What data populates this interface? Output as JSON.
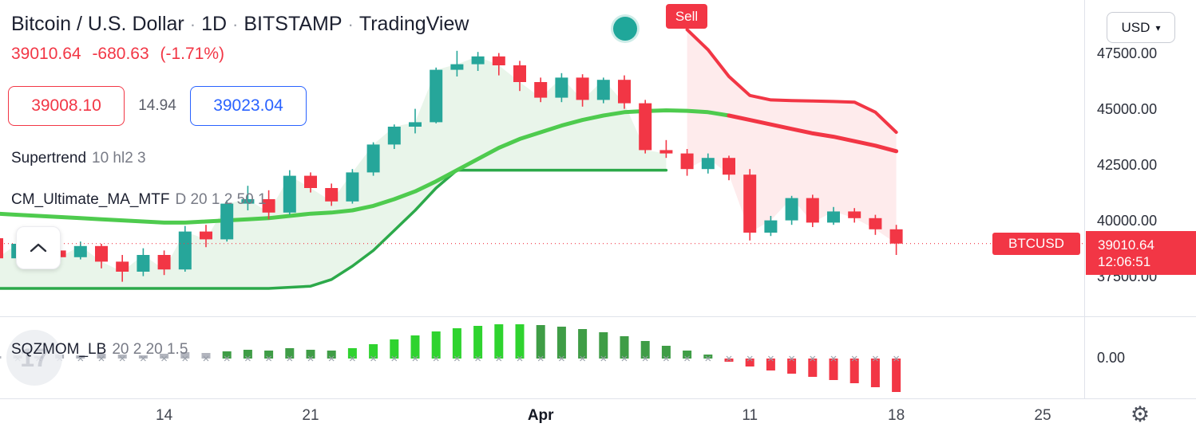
{
  "header": {
    "symbol": "Bitcoin / U.S. Dollar",
    "sep": "·",
    "timeframe": "1D",
    "exchange": "BITSTAMP",
    "brand": "TradingView"
  },
  "quote": {
    "last": "39010.64",
    "change": "-680.63",
    "change_pct": "(-1.71%)",
    "bid": "39008.10",
    "spread": "14.94",
    "ask": "39023.04"
  },
  "indicators": {
    "supertrend": {
      "name": "Supertrend",
      "params": "10 hl2 3"
    },
    "ma": {
      "name": "CM_Ultimate_MA_MTF",
      "params": "D 20 1 2 50 1"
    },
    "sqzmom": {
      "name": "SQZMOM_LB",
      "params": "20 2 20 1.5"
    }
  },
  "badges": {
    "sell": "Sell",
    "symbol_label": "BTCUSD",
    "price_label": "39010.64",
    "countdown": "12:06:51",
    "currency": "USD",
    "watermark": "17"
  },
  "colors": {
    "up": "#26a69a",
    "down": "#f23645",
    "st_green": "#2ca94a",
    "st_red": "#f23645",
    "ma_green": "#4ecb4e",
    "ma_red": "#f23645",
    "fill_up": "rgba(76,175,80,0.12)",
    "fill_down": "rgba(242,54,69,0.10)",
    "price_line": "#f23645",
    "marker": "#9aa0aa",
    "momentum": {
      "gray": "#b2b5be",
      "green": "#3f9d46",
      "lime": "#2fd32f",
      "red": "#f23645"
    }
  },
  "chart_data": {
    "type": "candlestick",
    "title": "Bitcoin / U.S. Dollar 1D BITSTAMP",
    "ylim": [
      36000,
      49900
    ],
    "grid": false,
    "price_line": 39010.64,
    "candles": [
      [
        39250,
        39350,
        38000,
        38350
      ],
      [
        38350,
        39300,
        38200,
        39000
      ],
      [
        39000,
        39200,
        38500,
        38700
      ],
      [
        38700,
        38900,
        38200,
        38400
      ],
      [
        38400,
        39100,
        38300,
        38900
      ],
      [
        38900,
        39000,
        37900,
        38200
      ],
      [
        38200,
        38500,
        37300,
        37750
      ],
      [
        37750,
        38800,
        37550,
        38500
      ],
      [
        38500,
        38700,
        37600,
        37850
      ],
      [
        37850,
        39800,
        37750,
        39550
      ],
      [
        39550,
        39850,
        38850,
        39200
      ],
      [
        39200,
        40950,
        39100,
        40800
      ],
      [
        40800,
        41600,
        40500,
        41000
      ],
      [
        41000,
        41400,
        40100,
        40400
      ],
      [
        40400,
        42300,
        40300,
        42050
      ],
      [
        42050,
        42200,
        41300,
        41500
      ],
      [
        41500,
        41700,
        40700,
        40900
      ],
      [
        40900,
        42350,
        40800,
        42200
      ],
      [
        42200,
        43550,
        42050,
        43450
      ],
      [
        43450,
        44350,
        43250,
        44250
      ],
      [
        44250,
        45050,
        43950,
        44450
      ],
      [
        44450,
        46900,
        44400,
        46800
      ],
      [
        46800,
        47650,
        46500,
        47050
      ],
      [
        47050,
        47600,
        46750,
        47400
      ],
      [
        47400,
        47550,
        46550,
        47000
      ],
      [
        47000,
        47200,
        45850,
        46250
      ],
      [
        46250,
        46450,
        45350,
        45550
      ],
      [
        45550,
        46650,
        45350,
        46450
      ],
      [
        46450,
        46600,
        45150,
        45450
      ],
      [
        45450,
        46450,
        45300,
        46350
      ],
      [
        46350,
        46550,
        45050,
        45300
      ],
      [
        45300,
        45450,
        43050,
        43200
      ],
      [
        43200,
        43650,
        42850,
        43050
      ],
      [
        43050,
        43250,
        42050,
        42350
      ],
      [
        42350,
        43050,
        42150,
        42850
      ],
      [
        42850,
        42950,
        41850,
        42100
      ],
      [
        42100,
        42350,
        39150,
        39500
      ],
      [
        39500,
        40250,
        39350,
        40050
      ],
      [
        40050,
        41150,
        39850,
        41050
      ],
      [
        41050,
        41200,
        39750,
        39950
      ],
      [
        39950,
        40650,
        39850,
        40450
      ],
      [
        40450,
        40600,
        39950,
        40150
      ],
      [
        40150,
        40300,
        39400,
        39650
      ],
      [
        39650,
        39850,
        38500,
        39010.64
      ]
    ],
    "supertrend": {
      "green": {
        "start": 0,
        "values": [
          37000,
          37000,
          37000,
          37000,
          37000,
          37000,
          37000,
          37000,
          37000,
          37000,
          37000,
          37000,
          37000,
          37000,
          37050,
          37100,
          37400,
          38000,
          38700,
          39600,
          40500,
          41500,
          42300,
          42300,
          42300,
          42300,
          42300,
          42300,
          42300,
          42300,
          42300,
          42300,
          42300
        ]
      },
      "red": {
        "start": 33,
        "values": [
          48600,
          47700,
          46500,
          45650,
          45450,
          45420,
          45400,
          45380,
          45350,
          44900,
          44000
        ]
      }
    },
    "ma": {
      "red_from": 35,
      "values": [
        40350,
        40300,
        40250,
        40200,
        40150,
        40100,
        40050,
        40000,
        39950,
        39950,
        40000,
        40050,
        40100,
        40150,
        40250,
        40350,
        40400,
        40500,
        40700,
        41000,
        41350,
        41800,
        42300,
        42800,
        43300,
        43700,
        44000,
        44300,
        44550,
        44750,
        44900,
        44950,
        44980,
        44960,
        44900,
        44750,
        44550,
        44350,
        44150,
        43950,
        43800,
        43600,
        43400,
        43150
      ]
    },
    "momentum": {
      "zero_label": "0.00",
      "values": [
        3,
        4,
        3,
        5,
        4,
        6,
        5,
        4,
        6,
        8,
        7,
        9,
        11,
        10,
        13,
        11,
        10,
        13,
        18,
        24,
        29,
        34,
        38,
        41,
        43,
        43,
        42,
        40,
        37,
        33,
        28,
        22,
        16,
        10,
        5,
        -4,
        -10,
        -15,
        -19,
        -23,
        -27,
        -31,
        -36,
        -42
      ],
      "colors": [
        "gray",
        "gray",
        "gray",
        "gray",
        "gray",
        "gray",
        "gray",
        "gray",
        "gray",
        "gray",
        "gray",
        "green",
        "green",
        "green",
        "green",
        "green",
        "green",
        "lime",
        "lime",
        "lime",
        "lime",
        "lime",
        "lime",
        "lime",
        "lime",
        "lime",
        "green",
        "green",
        "green",
        "green",
        "green",
        "green",
        "green",
        "green",
        "green",
        "red",
        "red",
        "red",
        "red",
        "red",
        "red",
        "red",
        "red",
        "red"
      ]
    },
    "x_axis": {
      "ticks": [
        {
          "label": "14",
          "i": 8
        },
        {
          "label": "21",
          "i": 15
        },
        {
          "label": "Apr",
          "i": 26,
          "bold": true
        },
        {
          "label": "11",
          "i": 36
        },
        {
          "label": "18",
          "i": 43
        },
        {
          "label": "25",
          "i": 50
        }
      ]
    },
    "y_axis": {
      "ticks": [
        {
          "label": "47500.00",
          "price": 47500
        },
        {
          "label": "45000.00",
          "price": 45000
        },
        {
          "label": "42500.00",
          "price": 42500
        },
        {
          "label": "40000.00",
          "price": 40000
        },
        {
          "label": "37500.00",
          "price": 37500
        },
        {
          "label": "0.00",
          "y": 450
        }
      ]
    }
  }
}
